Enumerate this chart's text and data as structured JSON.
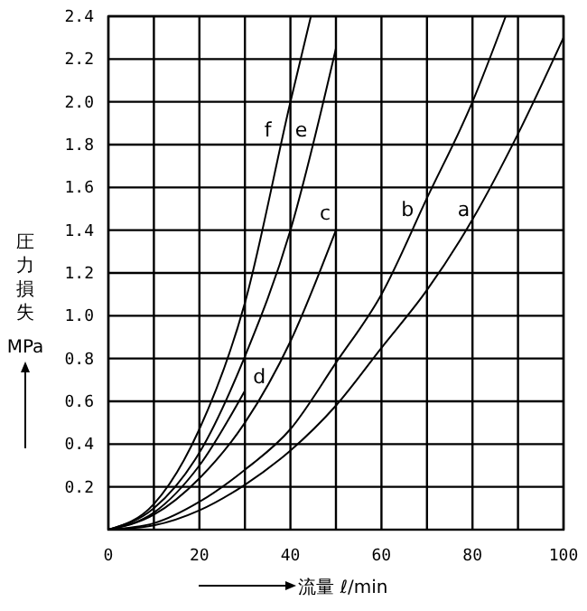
{
  "chart_data": {
    "type": "line",
    "xlabel": "流量 ℓ/min",
    "ylabel": "圧力損失 MPa",
    "xlim": [
      0,
      100
    ],
    "ylim": [
      0,
      2.4
    ],
    "xticks": [
      0,
      {
        "value": 10,
        "label": null
      },
      20,
      {
        "value": 30,
        "label": null
      },
      40,
      {
        "value": 50,
        "label": null
      },
      60,
      {
        "value": 70,
        "label": null
      },
      80,
      {
        "value": 90,
        "label": null
      },
      100
    ],
    "yticks": [
      0.2,
      0.4,
      0.6,
      0.8,
      {
        "value": 1,
        "label": "1.0"
      },
      1.2,
      1.4,
      1.6,
      1.8,
      {
        "value": 2,
        "label": "2.0"
      },
      2.2,
      2.4
    ],
    "grid": true,
    "marker": "none",
    "line_style": "solid",
    "series": [
      {
        "name": "f",
        "color": "#000000",
        "x": [
          0,
          10,
          20,
          30,
          40,
          44.5
        ],
        "values": [
          0,
          0.12,
          0.47,
          1.06,
          2.0,
          2.4
        ]
      },
      {
        "name": "e",
        "color": "#000000",
        "x": [
          0,
          10,
          20,
          30,
          40,
          50
        ],
        "values": [
          0,
          0.1,
          0.36,
          0.81,
          1.4,
          2.25
        ]
      },
      {
        "name": "c",
        "color": "#000000",
        "x": [
          0,
          10,
          20,
          30,
          40,
          50
        ],
        "values": [
          0,
          0.07,
          0.24,
          0.5,
          0.88,
          1.4
        ]
      },
      {
        "name": "d",
        "color": "#000000",
        "x": [
          0,
          10,
          20,
          30
        ],
        "values": [
          0,
          0.08,
          0.3,
          0.65
        ]
      },
      {
        "name": "b",
        "color": "#000000",
        "x": [
          0,
          10,
          20,
          30,
          40,
          50,
          60,
          70,
          80,
          87.3
        ],
        "values": [
          0,
          0.03,
          0.13,
          0.28,
          0.47,
          0.78,
          1.1,
          1.55,
          2.0,
          2.4
        ]
      },
      {
        "name": "a",
        "color": "#000000",
        "x": [
          0,
          10,
          20,
          30,
          40,
          50,
          60,
          70,
          80,
          90,
          100
        ],
        "values": [
          0,
          0.02,
          0.09,
          0.21,
          0.37,
          0.58,
          0.85,
          1.12,
          1.45,
          1.85,
          2.3
        ]
      }
    ]
  }
}
